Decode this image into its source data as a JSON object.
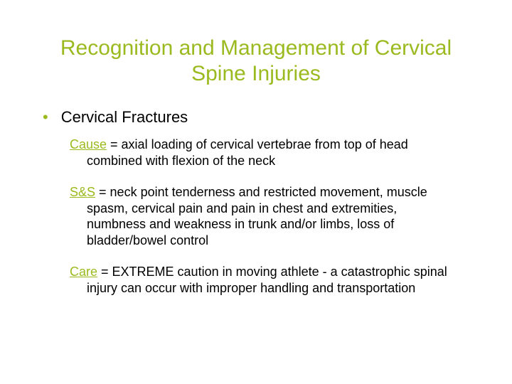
{
  "colors": {
    "accent": "#9aba1f",
    "text": "#000000",
    "background": "#ffffff"
  },
  "typography": {
    "title_fontsize": 30,
    "bullet_fontsize": 22,
    "body_fontsize": 18,
    "font_family": "Arial"
  },
  "title": "Recognition and Management of Cervical Spine Injuries",
  "bullet": {
    "marker": "•",
    "label": "Cervical Fractures"
  },
  "points": {
    "cause": {
      "label": "Cause",
      "text": " = axial loading of cervical vertebrae from top of head combined with flexion of the neck"
    },
    "ss": {
      "label": "S&S",
      "text": " = neck point tenderness and restricted movement, muscle spasm, cervical pain and pain in chest and extremities, numbness and weakness in trunk and/or limbs, loss of bladder/bowel control"
    },
    "care": {
      "label": "Care",
      "text": " = EXTREME caution in moving athlete - a catastrophic spinal injury can occur with improper handling and transportation"
    }
  }
}
